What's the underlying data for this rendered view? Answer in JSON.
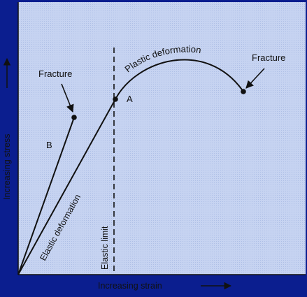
{
  "labels": {
    "fracture_left": "Fracture",
    "fracture_right": "Fracture",
    "curve_b": "B",
    "point_a": "A",
    "elastic_deformation": "Elastic deformation",
    "plastic_deformation": "Plastic deformation",
    "elastic_limit": "Elastic limit",
    "x_axis": "Increasing strain",
    "y_axis": "Increasing stress"
  },
  "colors": {
    "frame": "#0b1e8f",
    "plot_bg": "#c9d6f3",
    "ink": "#111111"
  }
}
